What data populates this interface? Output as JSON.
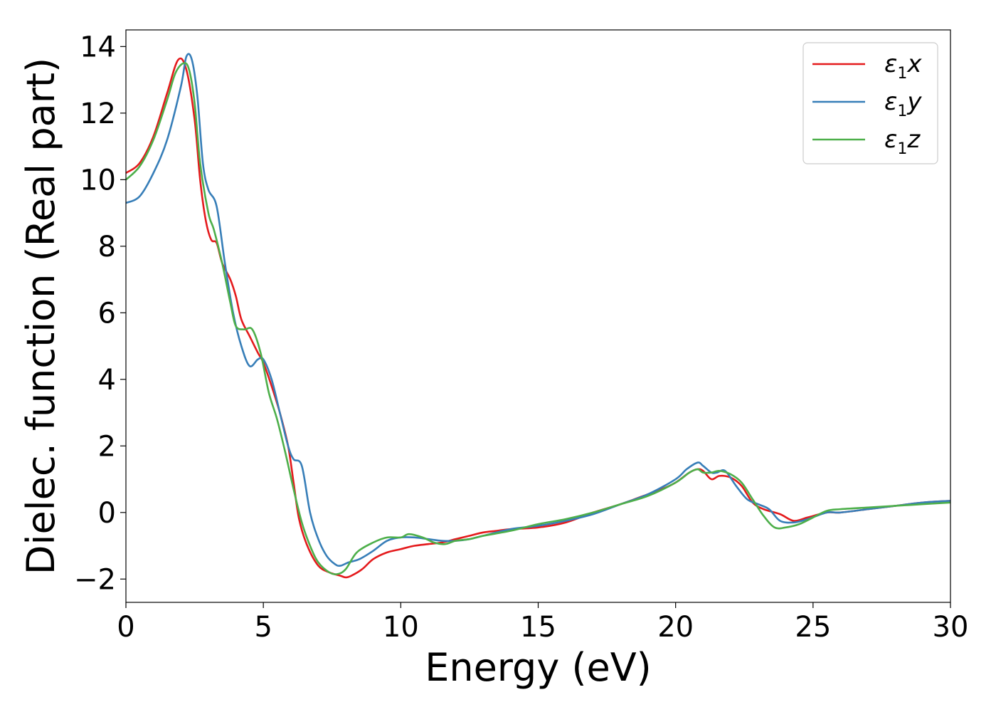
{
  "chart_data": {
    "type": "line",
    "xlabel": "Energy (eV)",
    "ylabel": "Dielec. function (Real part)",
    "xlim": [
      0,
      30
    ],
    "ylim": [
      -2.7,
      14.5
    ],
    "xticks": [
      0,
      5,
      10,
      15,
      20,
      25,
      30
    ],
    "yticks": [
      -2,
      0,
      2,
      4,
      6,
      8,
      10,
      12,
      14
    ],
    "ytick_labels": [
      "−2",
      "0",
      "2",
      "4",
      "6",
      "8",
      "10",
      "12",
      "14"
    ],
    "grid": false,
    "legend_position": "top-right",
    "series": [
      {
        "name": "ε1x",
        "legend_main": "ε",
        "legend_sub": "1",
        "legend_tail": "x",
        "color": "#e41a1c",
        "x": [
          0,
          0.5,
          1.0,
          1.5,
          1.9,
          2.2,
          2.5,
          2.7,
          2.9,
          3.1,
          3.3,
          3.5,
          3.8,
          4.0,
          4.2,
          4.5,
          4.8,
          5.0,
          5.3,
          5.6,
          5.9,
          6.1,
          6.3,
          6.6,
          7.0,
          7.4,
          7.8,
          8.0,
          8.2,
          8.6,
          9.0,
          9.5,
          10.0,
          10.5,
          11.0,
          11.5,
          12.0,
          12.5,
          13.0,
          13.5,
          14.0,
          15.0,
          16.0,
          17.0,
          18.0,
          19.0,
          19.5,
          20.0,
          20.5,
          20.8,
          21.0,
          21.3,
          21.6,
          22.0,
          22.4,
          22.8,
          23.2,
          23.8,
          24.3,
          24.8,
          25.5,
          26.0,
          27.0,
          28.0,
          29.0,
          30.0
        ],
        "y": [
          10.2,
          10.5,
          11.3,
          12.6,
          13.6,
          13.3,
          11.8,
          10.0,
          8.8,
          8.2,
          8.1,
          7.5,
          7.0,
          6.5,
          5.8,
          5.3,
          4.8,
          4.5,
          3.8,
          3.0,
          2.0,
          0.9,
          -0.2,
          -1.0,
          -1.6,
          -1.8,
          -1.9,
          -1.95,
          -1.9,
          -1.7,
          -1.4,
          -1.2,
          -1.1,
          -1.0,
          -0.95,
          -0.9,
          -0.8,
          -0.7,
          -0.6,
          -0.55,
          -0.5,
          -0.45,
          -0.3,
          0.0,
          0.25,
          0.55,
          0.7,
          0.9,
          1.2,
          1.3,
          1.25,
          1.0,
          1.1,
          1.05,
          0.8,
          0.3,
          0.1,
          -0.05,
          -0.25,
          -0.15,
          0.0,
          0.0,
          0.1,
          0.2,
          0.3,
          0.35
        ]
      },
      {
        "name": "ε1y",
        "legend_main": "ε",
        "legend_sub": "1",
        "legend_tail": "y",
        "color": "#377eb8",
        "x": [
          0,
          0.5,
          1.0,
          1.5,
          2.0,
          2.2,
          2.4,
          2.6,
          2.8,
          3.0,
          3.3,
          3.6,
          3.9,
          4.2,
          4.5,
          4.8,
          5.0,
          5.3,
          5.6,
          5.9,
          6.1,
          6.4,
          6.7,
          7.0,
          7.3,
          7.6,
          7.8,
          8.1,
          8.5,
          9.0,
          9.5,
          10.0,
          10.5,
          11.0,
          11.5,
          12.0,
          12.5,
          13.0,
          14.0,
          15.0,
          16.0,
          17.0,
          18.0,
          19.0,
          20.0,
          20.4,
          20.8,
          21.0,
          21.3,
          21.5,
          21.8,
          22.2,
          22.6,
          23.0,
          23.4,
          23.8,
          24.3,
          24.8,
          25.5,
          26.0,
          27.0,
          28.0,
          29.0,
          30.0
        ],
        "y": [
          9.3,
          9.5,
          10.2,
          11.2,
          12.8,
          13.7,
          13.6,
          12.5,
          10.5,
          9.7,
          9.2,
          7.5,
          6.0,
          5.0,
          4.4,
          4.6,
          4.6,
          4.0,
          3.0,
          2.0,
          1.6,
          1.4,
          0.0,
          -0.8,
          -1.3,
          -1.55,
          -1.6,
          -1.5,
          -1.4,
          -1.15,
          -0.85,
          -0.75,
          -0.75,
          -0.8,
          -0.85,
          -0.85,
          -0.8,
          -0.7,
          -0.5,
          -0.4,
          -0.25,
          -0.05,
          0.25,
          0.55,
          1.0,
          1.3,
          1.5,
          1.4,
          1.2,
          1.2,
          1.25,
          0.8,
          0.4,
          0.25,
          0.1,
          -0.25,
          -0.3,
          -0.2,
          0.0,
          0.0,
          0.1,
          0.2,
          0.3,
          0.35
        ]
      },
      {
        "name": "ε1z",
        "legend_main": "ε",
        "legend_sub": "1",
        "legend_tail": "z",
        "color": "#4daf4a",
        "x": [
          0,
          0.5,
          1.0,
          1.5,
          1.8,
          2.1,
          2.3,
          2.5,
          2.7,
          3.0,
          3.2,
          3.5,
          3.8,
          4.0,
          4.3,
          4.6,
          4.9,
          5.2,
          5.5,
          5.8,
          6.1,
          6.4,
          6.7,
          7.0,
          7.4,
          7.7,
          8.0,
          8.4,
          9.0,
          9.5,
          10.0,
          10.3,
          10.8,
          11.2,
          11.6,
          12.0,
          12.5,
          13.0,
          14.0,
          15.0,
          16.0,
          17.0,
          18.0,
          19.0,
          20.0,
          20.5,
          20.8,
          21.0,
          21.3,
          21.6,
          22.0,
          22.4,
          22.8,
          23.2,
          23.6,
          24.0,
          24.5,
          25.0,
          25.5,
          26.0,
          27.0,
          28.0,
          29.0,
          30.0
        ],
        "y": [
          10.0,
          10.4,
          11.2,
          12.4,
          13.2,
          13.5,
          13.3,
          12.3,
          10.5,
          9.0,
          8.5,
          7.5,
          6.3,
          5.6,
          5.5,
          5.5,
          4.8,
          3.6,
          2.8,
          1.8,
          0.7,
          -0.3,
          -1.0,
          -1.5,
          -1.8,
          -1.85,
          -1.7,
          -1.2,
          -0.9,
          -0.75,
          -0.75,
          -0.65,
          -0.75,
          -0.9,
          -0.95,
          -0.85,
          -0.8,
          -0.7,
          -0.55,
          -0.35,
          -0.2,
          0.0,
          0.25,
          0.5,
          0.9,
          1.2,
          1.3,
          1.2,
          1.2,
          1.25,
          1.15,
          0.9,
          0.4,
          -0.1,
          -0.45,
          -0.45,
          -0.35,
          -0.15,
          0.05,
          0.1,
          0.15,
          0.2,
          0.25,
          0.3
        ]
      }
    ]
  }
}
